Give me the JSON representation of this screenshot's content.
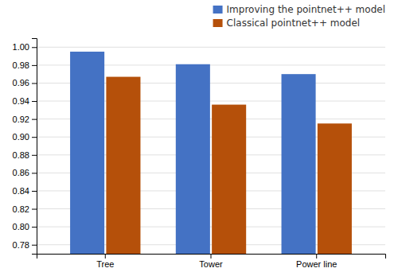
{
  "chart_data": {
    "type": "bar",
    "categories": [
      "Tree",
      "Tower",
      "Power line"
    ],
    "series": [
      {
        "name": "Improving the pointnet++ model",
        "color": "#4472C4",
        "values": [
          0.995,
          0.981,
          0.97
        ]
      },
      {
        "name": "Classical pointnet++ model",
        "color": "#B5500A",
        "values": [
          0.967,
          0.936,
          0.915
        ]
      }
    ],
    "ylim": [
      0.77,
      1.01
    ],
    "yticks": [
      0.78,
      {
        "value": 0.8,
        "label": "0.80"
      },
      0.82,
      0.84,
      0.86,
      0.88,
      {
        "value": 0.9,
        "label": "0.90"
      },
      0.92,
      0.94,
      0.96,
      0.98,
      {
        "value": 1.0,
        "label": "1.00"
      }
    ],
    "grid": true,
    "legend": "upper right"
  }
}
